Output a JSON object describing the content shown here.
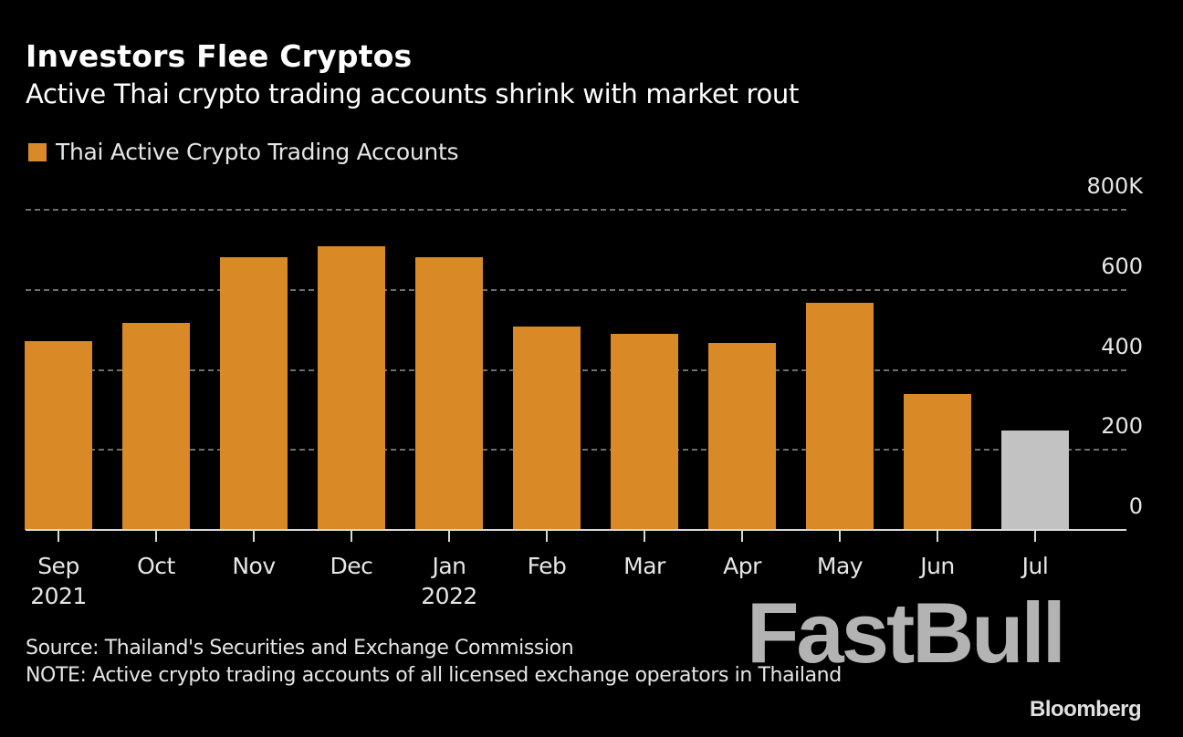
{
  "header": {
    "title": "Investors Flee Cryptos",
    "subtitle": "Active Thai crypto trading accounts shrink with market rout"
  },
  "legend": {
    "label": "Thai Active Crypto Trading Accounts",
    "color": "#d98a26"
  },
  "colors": {
    "bar": "#d98a26",
    "bar_highlight": "#c2c2c2",
    "background": "#000000",
    "grid": "#6e6e6e"
  },
  "y_axis": {
    "ticks": [
      {
        "label": "800K",
        "value": 800000
      },
      {
        "label": "600",
        "value": 600000
      },
      {
        "label": "400",
        "value": 400000
      },
      {
        "label": "200",
        "value": 200000
      },
      {
        "label": "0",
        "value": 0
      }
    ]
  },
  "x_axis": {
    "labels": [
      {
        "month": "Sep",
        "year": "2021"
      },
      {
        "month": "Oct",
        "year": ""
      },
      {
        "month": "Nov",
        "year": ""
      },
      {
        "month": "Dec",
        "year": ""
      },
      {
        "month": "Jan",
        "year": "2022"
      },
      {
        "month": "Feb",
        "year": ""
      },
      {
        "month": "Mar",
        "year": ""
      },
      {
        "month": "Apr",
        "year": ""
      },
      {
        "month": "May",
        "year": ""
      },
      {
        "month": "Jun",
        "year": ""
      },
      {
        "month": "Jul",
        "year": ""
      }
    ]
  },
  "footer": {
    "source": "Source: Thailand's Securities and Exchange Commission",
    "note": "NOTE: Active crypto trading accounts of all licensed exchange operators in Thailand"
  },
  "watermark": "FastBull",
  "brand": "Bloomberg",
  "chart_data": {
    "type": "bar",
    "title": "Investors Flee Cryptos",
    "subtitle": "Active Thai crypto trading accounts shrink with market rout",
    "categories": [
      "Sep 2021",
      "Oct",
      "Nov",
      "Dec",
      "Jan 2022",
      "Feb",
      "Mar",
      "Apr",
      "May",
      "Jun",
      "Jul"
    ],
    "series": [
      {
        "name": "Thai Active Crypto Trading Accounts",
        "values": [
          472000,
          517000,
          681000,
          709000,
          681000,
          508000,
          490000,
          467000,
          567000,
          340000,
          248000
        ]
      }
    ],
    "highlighted_category": "Jul",
    "xlabel": "",
    "ylabel": "",
    "ylim": [
      0,
      800000
    ],
    "yticks": [
      0,
      200000,
      400000,
      600000,
      800000
    ],
    "ytick_labels": [
      "0",
      "200",
      "400",
      "600",
      "800K"
    ],
    "grid": true,
    "y_axis_position": "right",
    "legend_position": "top-left",
    "source": "Source: Thailand's Securities and Exchange Commission",
    "note": "NOTE: Active crypto trading accounts of all licensed exchange operators in Thailand"
  }
}
